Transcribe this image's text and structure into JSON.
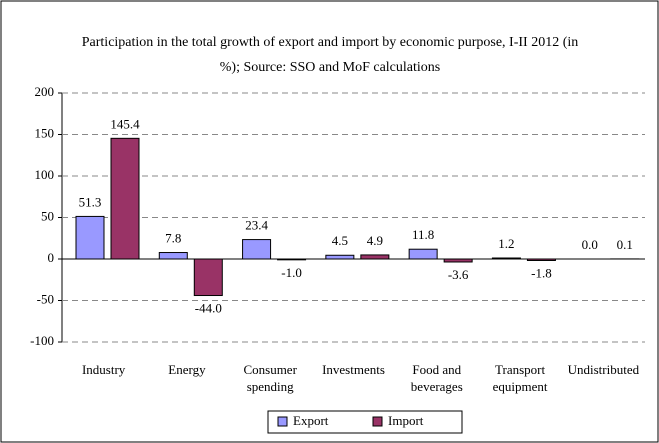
{
  "chart_data": {
    "type": "bar",
    "title": "Participation in the total growth of export and import by economic purpose, I-II 2012 (in %); Source: SSO and MoF calculations",
    "categories": [
      "Industry",
      "Energy",
      "Consumer spending",
      "Investments",
      "Food and beverages",
      "Transport equipment",
      "Undistributed"
    ],
    "series": [
      {
        "name": "Export",
        "color": "#9999ff",
        "values": [
          51.3,
          7.8,
          23.4,
          4.5,
          11.8,
          1.2,
          0.0
        ],
        "value_labels": [
          "51.3",
          "7.8",
          "23.4",
          "4.5",
          "11.8",
          "1.2",
          "0.0"
        ]
      },
      {
        "name": "Import",
        "color": "#993366",
        "values": [
          145.4,
          -44.0,
          -1.0,
          4.9,
          -3.6,
          -1.8,
          0.1
        ],
        "value_labels": [
          "145.4",
          "-44.0",
          "-1.0",
          "4.9",
          "-3.6",
          "-1.8",
          "0.1"
        ]
      }
    ],
    "ylim": [
      -100,
      200
    ],
    "yticks": [
      -100,
      -50,
      0,
      50,
      100,
      150,
      200
    ],
    "grid": true,
    "legend": "bottom"
  }
}
